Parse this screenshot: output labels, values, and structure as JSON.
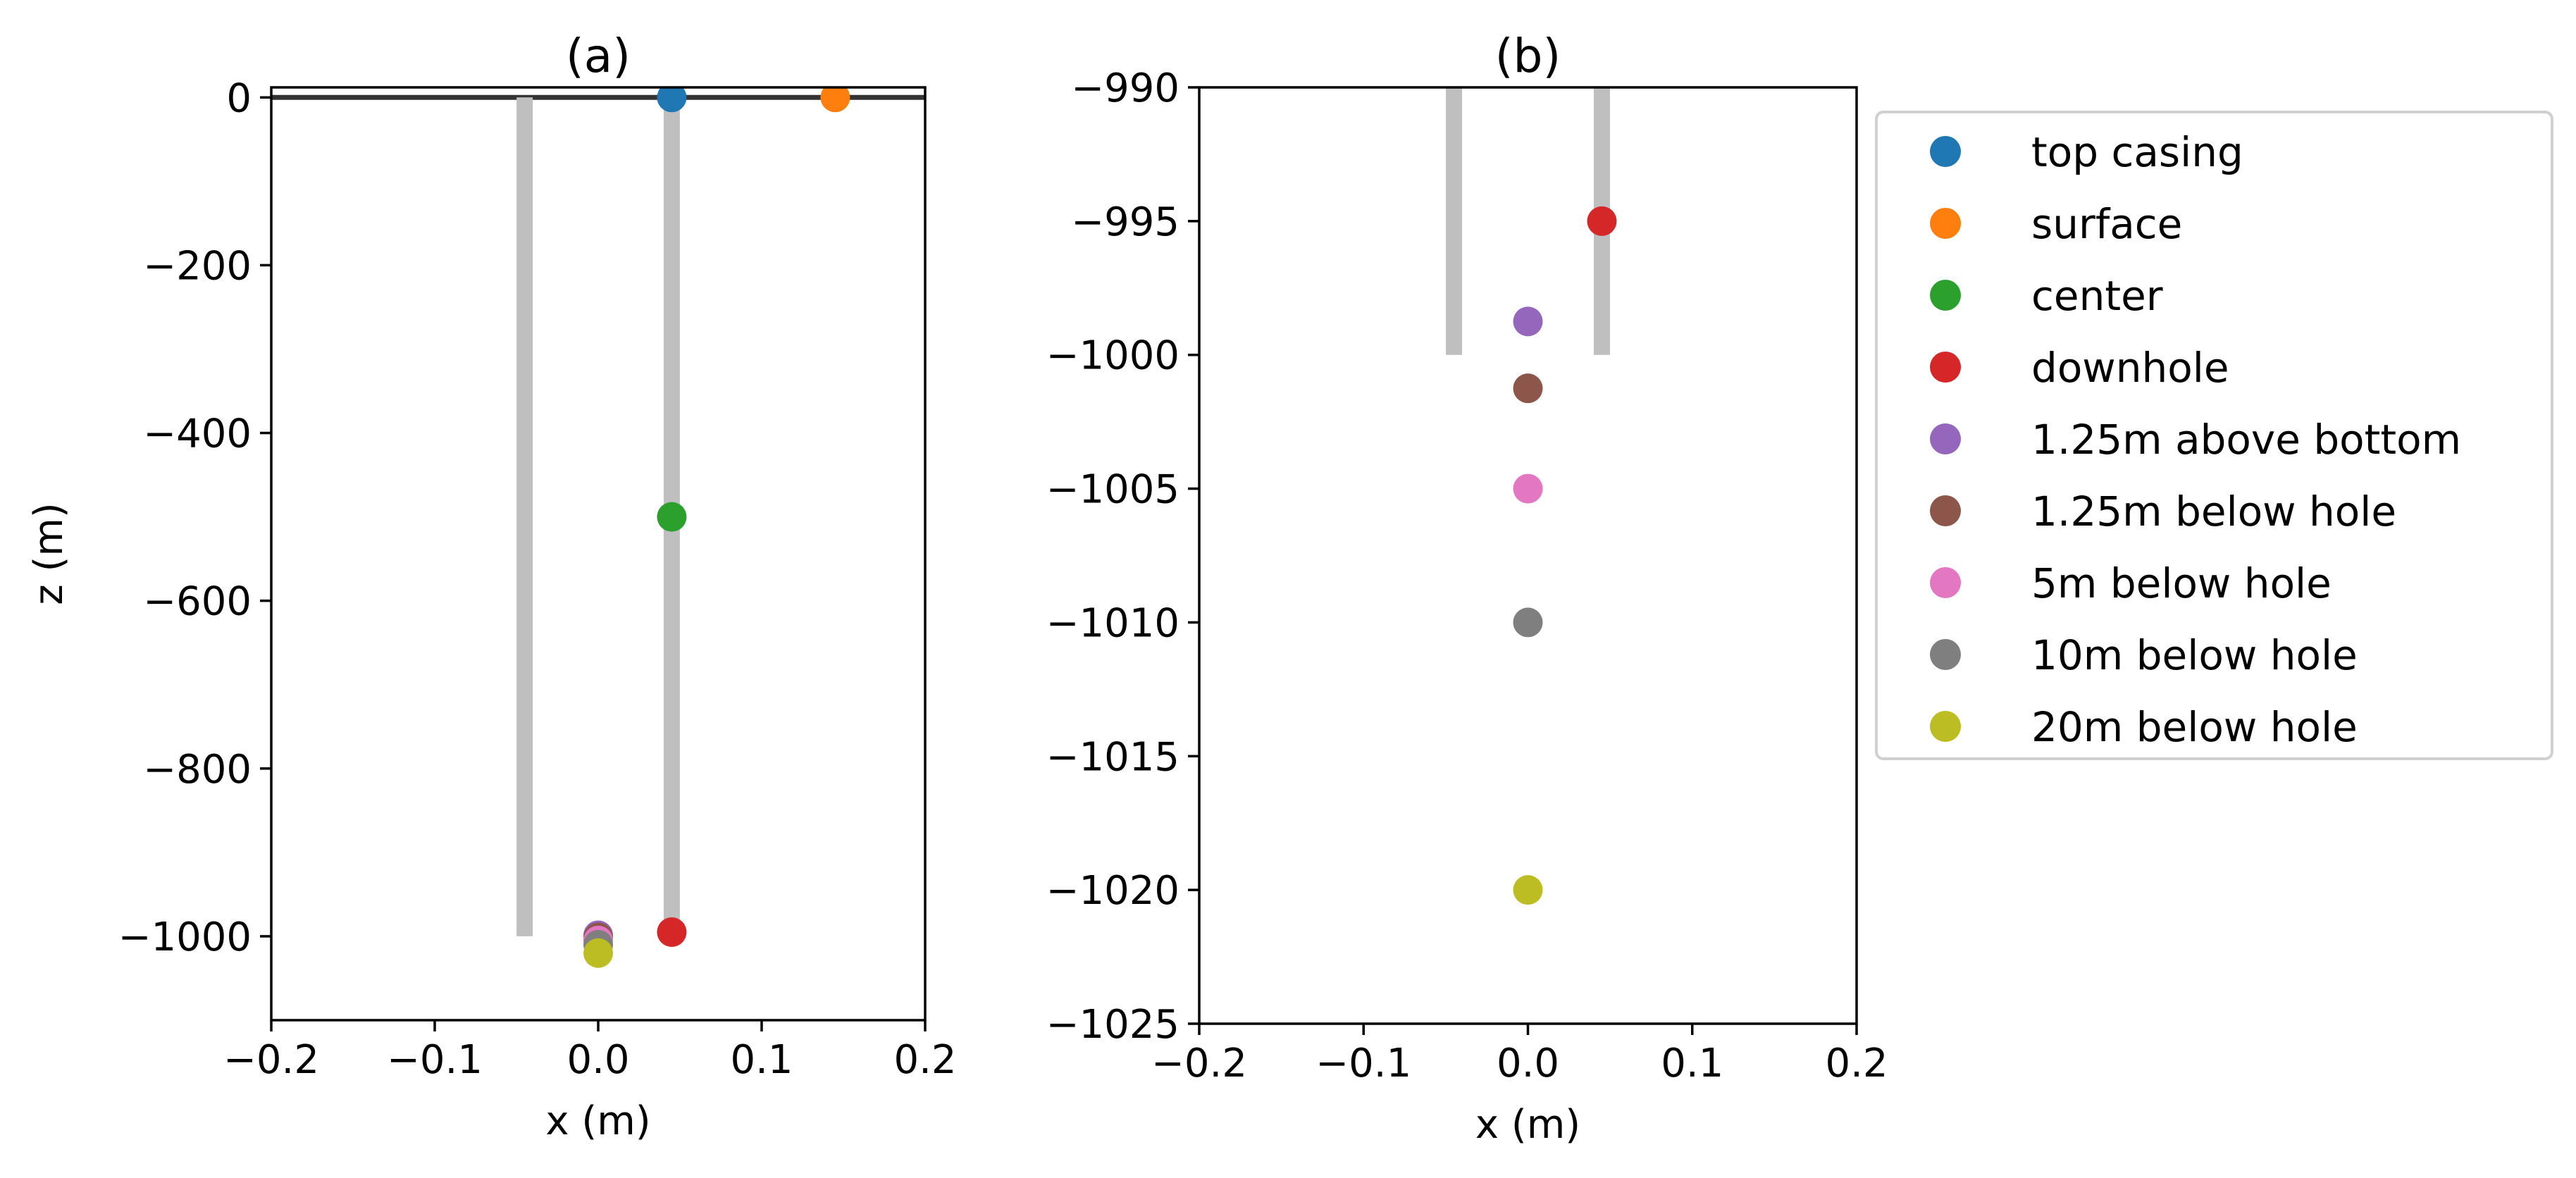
{
  "chart_data": [
    {
      "type": "scatter",
      "panel": "a",
      "title": "(a)",
      "xlabel": "x (m)",
      "ylabel": "z (m)",
      "xlim": [
        -0.2,
        0.2
      ],
      "ylim": [
        -1100,
        12
      ],
      "xticks": [
        -0.2,
        -0.1,
        0.0,
        0.1,
        0.2
      ],
      "xtick_labels": [
        "−0.2",
        "−0.1",
        "0.0",
        "0.1",
        "0.2"
      ],
      "yticks": [
        0,
        -200,
        -400,
        -600,
        -800,
        -1000
      ],
      "ytick_labels": [
        "0",
        "−200",
        "−400",
        "−600",
        "−800",
        "−1000"
      ],
      "grid": false,
      "lines": [
        {
          "name": "surface-line",
          "x": [
            -0.2,
            0.2
          ],
          "y": [
            0,
            0
          ],
          "color": "#333333"
        },
        {
          "name": "casing-left",
          "x": [
            -0.045,
            -0.045
          ],
          "y": [
            0,
            -1000
          ],
          "color": "#bfbfbf"
        },
        {
          "name": "casing-right",
          "x": [
            0.045,
            0.045
          ],
          "y": [
            0,
            -1000
          ],
          "color": "#bfbfbf"
        }
      ],
      "series": [
        {
          "name": "top casing",
          "x": 0.045,
          "y": 0,
          "color": "#1f77b4"
        },
        {
          "name": "surface",
          "x": 0.145,
          "y": 0,
          "color": "#ff7f0e"
        },
        {
          "name": "center",
          "x": 0.045,
          "y": -500,
          "color": "#2ca02c"
        },
        {
          "name": "downhole",
          "x": 0.045,
          "y": -995,
          "color": "#d62728"
        },
        {
          "name": "1.25m above bottom",
          "x": 0.0,
          "y": -998.75,
          "color": "#9467bd"
        },
        {
          "name": "1.25m below hole",
          "x": 0.0,
          "y": -1001.25,
          "color": "#8c564b"
        },
        {
          "name": "5m below hole",
          "x": 0.0,
          "y": -1005,
          "color": "#e377c2"
        },
        {
          "name": "10m below hole",
          "x": 0.0,
          "y": -1010,
          "color": "#7f7f7f"
        },
        {
          "name": "20m below hole",
          "x": 0.0,
          "y": -1020,
          "color": "#bcbd22"
        }
      ]
    },
    {
      "type": "scatter",
      "panel": "b",
      "title": "(b)",
      "xlabel": "x (m)",
      "ylabel": "",
      "xlim": [
        -0.2,
        0.2
      ],
      "ylim": [
        -1025,
        -990
      ],
      "xticks": [
        -0.2,
        -0.1,
        0.0,
        0.1,
        0.2
      ],
      "xtick_labels": [
        "−0.2",
        "−0.1",
        "0.0",
        "0.1",
        "0.2"
      ],
      "yticks": [
        -990,
        -995,
        -1000,
        -1005,
        -1010,
        -1015,
        -1020,
        -1025
      ],
      "ytick_labels": [
        "−990",
        "−995",
        "−1000",
        "−1005",
        "−1010",
        "−1015",
        "−1020",
        "−1025"
      ],
      "grid": false,
      "lines": [
        {
          "name": "casing-left",
          "x": [
            -0.045,
            -0.045
          ],
          "y": [
            -990,
            -1000
          ],
          "color": "#bfbfbf"
        },
        {
          "name": "casing-right",
          "x": [
            0.045,
            0.045
          ],
          "y": [
            -990,
            -1000
          ],
          "color": "#bfbfbf"
        }
      ],
      "series": [
        {
          "name": "downhole",
          "x": 0.045,
          "y": -995,
          "color": "#d62728"
        },
        {
          "name": "1.25m above bottom",
          "x": 0.0,
          "y": -998.75,
          "color": "#9467bd"
        },
        {
          "name": "1.25m below hole",
          "x": 0.0,
          "y": -1001.25,
          "color": "#8c564b"
        },
        {
          "name": "5m below hole",
          "x": 0.0,
          "y": -1005,
          "color": "#e377c2"
        },
        {
          "name": "10m below hole",
          "x": 0.0,
          "y": -1010,
          "color": "#7f7f7f"
        },
        {
          "name": "20m below hole",
          "x": 0.0,
          "y": -1020,
          "color": "#bcbd22"
        }
      ]
    }
  ],
  "legend": {
    "position": "outside-right",
    "entries": [
      {
        "label": "top casing",
        "color": "#1f77b4"
      },
      {
        "label": "surface",
        "color": "#ff7f0e"
      },
      {
        "label": "center",
        "color": "#2ca02c"
      },
      {
        "label": "downhole",
        "color": "#d62728"
      },
      {
        "label": "1.25m above bottom",
        "color": "#9467bd"
      },
      {
        "label": "1.25m below hole",
        "color": "#8c564b"
      },
      {
        "label": "5m below hole",
        "color": "#e377c2"
      },
      {
        "label": "10m below hole",
        "color": "#7f7f7f"
      },
      {
        "label": "20m below hole",
        "color": "#bcbd22"
      }
    ]
  }
}
